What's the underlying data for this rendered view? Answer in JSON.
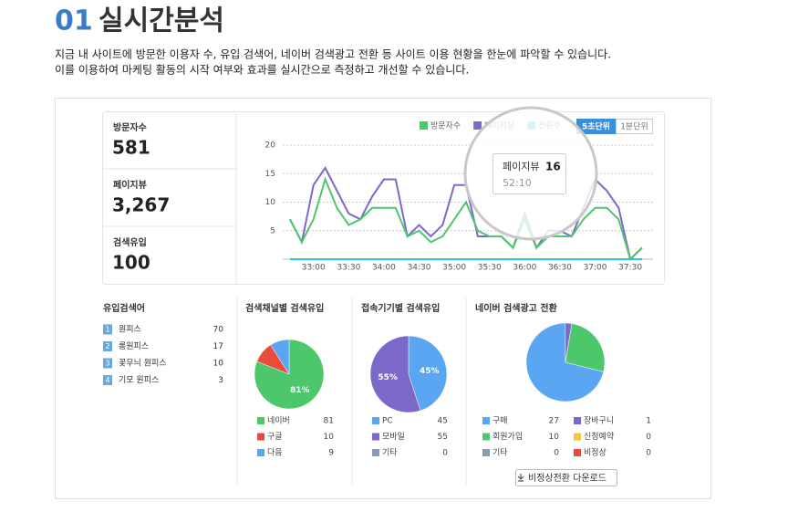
{
  "header": {
    "number": "01",
    "title": "실시간분석",
    "description": [
      "지금 내 사이트에 방문한 이용자 수, 유입 검색어, 네이버 검색광고 전환 등 사이트 이용 현황을 한눈에 파악할 수 있습니다.",
      "이를 이용하여 마케팅 활동의 시작 여부와 효과를 실시간으로 측정하고 개선할 수 있습니다."
    ]
  },
  "stats": [
    {
      "label": "방문자수",
      "value": "581"
    },
    {
      "label": "페이지뷰",
      "value": "3,267"
    },
    {
      "label": "검색유입",
      "value": "100"
    }
  ],
  "keywords": {
    "title": "유입검색어",
    "items": [
      {
        "rank": 1,
        "name": "원피스",
        "count": 70
      },
      {
        "rank": 2,
        "name": "롱원피스",
        "count": 17
      },
      {
        "rank": 3,
        "name": "꽃무늬 원피스",
        "count": 10
      },
      {
        "rank": 4,
        "name": "기모 원피스",
        "count": 3
      }
    ]
  },
  "download_button": "비정상전환 다운로드",
  "chart_data": [
    {
      "type": "line",
      "categories": [
        null,
        null,
        "33:00",
        null,
        null,
        "33:30",
        null,
        null,
        "34:00",
        null,
        null,
        "34:30",
        null,
        null,
        "35:00",
        null,
        null,
        "35:30",
        null,
        null,
        "36:00",
        null,
        null,
        "36:30",
        null,
        null,
        "37:00",
        null,
        null,
        "37:30",
        null
      ],
      "series": [
        {
          "name": "방문자수",
          "color": "#4cc76b",
          "values": [
            7,
            3,
            7,
            14,
            9,
            6,
            7,
            9,
            9,
            9,
            4,
            5,
            3,
            4,
            7,
            10,
            5,
            4,
            4,
            2,
            7,
            2,
            4,
            4,
            4,
            7,
            9,
            9,
            7,
            0,
            2
          ]
        },
        {
          "name": "페이지뷰",
          "color": "#8067cc",
          "values": [
            7,
            3,
            13,
            16,
            12,
            8,
            7,
            11,
            14,
            14,
            4,
            6,
            4,
            6,
            13,
            13,
            4,
            4,
            4,
            2,
            8,
            2,
            5,
            5,
            4,
            9,
            14,
            12,
            9,
            0,
            2
          ]
        },
        {
          "name": "전환수",
          "color": "#29c6e6",
          "values": [
            0,
            0,
            0,
            0,
            0,
            0,
            0,
            0,
            0,
            0,
            0,
            0,
            0,
            0,
            0,
            0,
            0,
            0,
            0,
            0,
            0,
            0,
            0,
            0,
            0,
            0,
            0,
            0,
            0,
            0,
            0
          ]
        }
      ],
      "ylim": [
        0,
        20
      ],
      "yticks": [
        5,
        10,
        15,
        20
      ],
      "grid": true,
      "units": [
        "5초단위",
        "1분단위"
      ],
      "tooltip": {
        "series": "페이지뷰",
        "value": 16,
        "time": "52:10"
      }
    },
    {
      "type": "pie",
      "title": "검색채널별 검색유입",
      "categories": [
        "네이버",
        "구글",
        "다음"
      ],
      "values": [
        81,
        10,
        9
      ],
      "colors": [
        "#4cc76b",
        "#e94b3c",
        "#5aa6f2"
      ],
      "value_labels": [
        "81%",
        null,
        null
      ]
    },
    {
      "type": "pie",
      "title": "접속기기별 검색유입",
      "categories": [
        "PC",
        "모바일",
        "기타"
      ],
      "values": [
        45,
        55,
        0
      ],
      "colors": [
        "#5aa6f2",
        "#7b68c9",
        "#8a9bb0"
      ],
      "value_labels": [
        "45%",
        "55%",
        null
      ]
    },
    {
      "type": "pie",
      "title": "네이버 검색광고 전환",
      "categories": [
        "구매",
        "장바구니",
        "회원가입",
        "신청예약",
        "기타",
        "비정상"
      ],
      "values": [
        27,
        1,
        10,
        0,
        0,
        0
      ],
      "colors": [
        "#5aa6f2",
        "#7b68c9",
        "#4cc76b",
        "#f5c63c",
        "#8a9bb0",
        "#e94b3c"
      ],
      "value_labels": [
        null,
        null,
        null,
        null,
        null,
        null
      ]
    }
  ]
}
